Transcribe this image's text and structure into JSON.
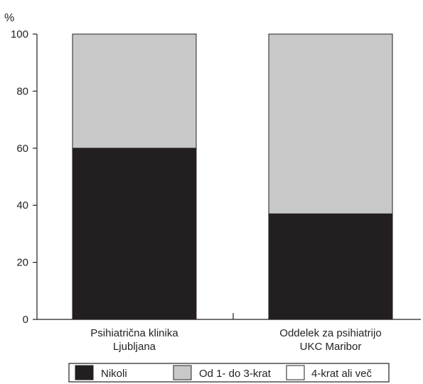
{
  "chart_data": {
    "type": "bar",
    "stacked": true,
    "y_unit_label": "%",
    "ylim": [
      0,
      100
    ],
    "yticks": [
      0,
      20,
      40,
      60,
      80,
      100
    ],
    "grid": false,
    "legend_position": "bottom",
    "categories": [
      [
        "Psihiatrična klinika",
        "Ljubljana"
      ],
      [
        "Oddelek za psihiatrijo",
        "UKC Maribor"
      ]
    ],
    "series": [
      {
        "name": "Nikoli",
        "values": [
          60,
          37
        ],
        "color": "#231f20"
      },
      {
        "name": "Od 1- do 3-krat",
        "values": [
          40,
          63
        ],
        "color": "#c8c8c8"
      },
      {
        "name": "4-krat ali več",
        "values": [
          0,
          0
        ],
        "color": "#ffffff"
      }
    ]
  }
}
